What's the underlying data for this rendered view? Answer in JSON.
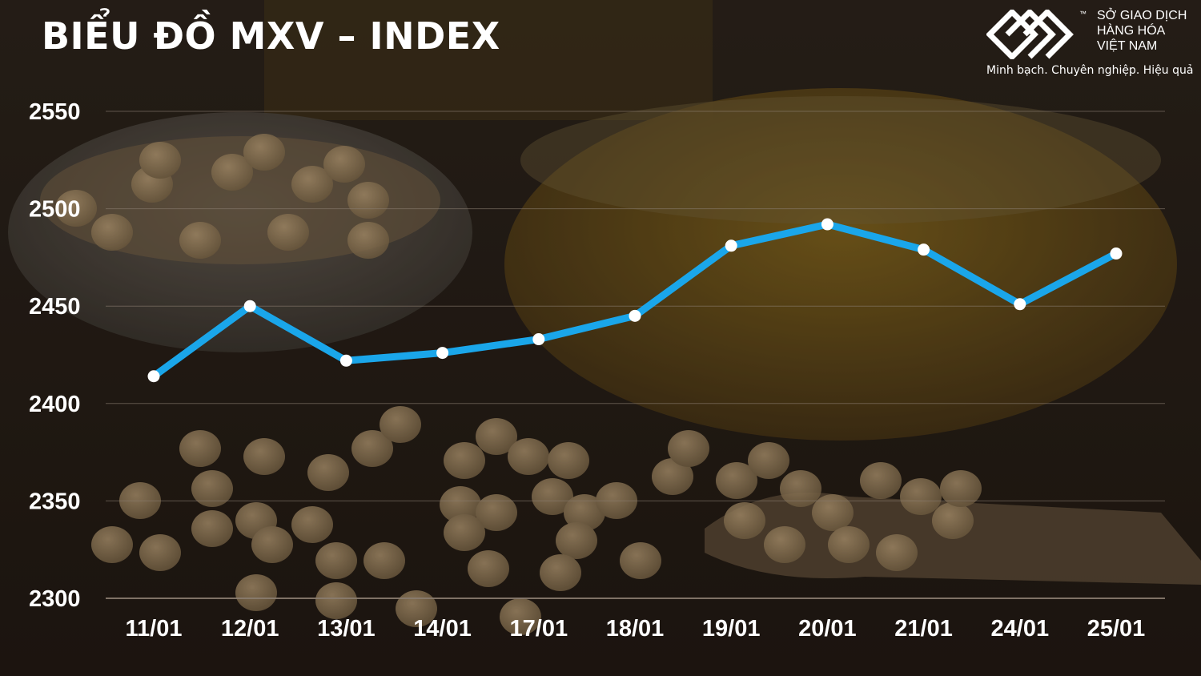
{
  "title": "BIỂU ĐỒ MXV – INDEX",
  "logo": {
    "name": "SỞ GIAO DỊCH\nHÀNG HÓA\nVIỆT NAM",
    "tm": "™",
    "slogan": "Minh bạch. Chuyên nghiệp. Hiệu quả"
  },
  "colors": {
    "line": "#1aa6ea",
    "marker": "#ffffff",
    "grid": "#8a7d70",
    "text": "#ffffff"
  },
  "chart_data": {
    "type": "line",
    "categories": [
      "11/01",
      "12/01",
      "13/01",
      "14/01",
      "17/01",
      "18/01",
      "19/01",
      "20/01",
      "21/01",
      "24/01",
      "25/01"
    ],
    "series": [
      {
        "values": [
          2414,
          2450,
          2422,
          2426,
          2433,
          2445,
          2481,
          2492,
          2479,
          2451,
          2477
        ]
      }
    ],
    "yticks": [
      2300,
      2350,
      2400,
      2450,
      2500,
      2550
    ],
    "ylim": [
      2300,
      2550
    ],
    "grid": true,
    "legend": false
  }
}
